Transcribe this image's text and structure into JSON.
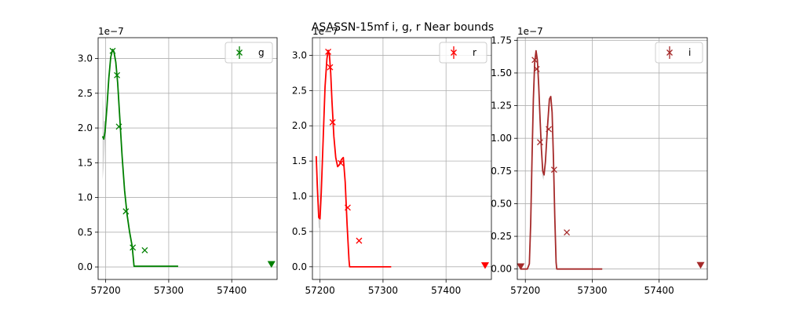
{
  "title": "ASASSN-15mf  i, g, r Near bounds",
  "chart_data": [
    {
      "type": "line",
      "band": "g",
      "color": "#008000",
      "legend": {
        "label": "g",
        "location": "upper right"
      },
      "offset_text": "1e−7",
      "xlim": [
        57188,
        57472
      ],
      "ylim": [
        -0.18,
        3.3
      ],
      "xticks": [
        57200,
        57300,
        57400
      ],
      "yticks": [
        0.0,
        0.5,
        1.0,
        1.5,
        2.0,
        2.5,
        3.0
      ],
      "ytick_labels": [
        "0.0",
        "0.5",
        "1.0",
        "1.5",
        "2.0",
        "2.5",
        "3.0"
      ],
      "grid": true,
      "model": {
        "x": [
          57195,
          57197,
          57199,
          57202,
          57205,
          57208,
          57211,
          57213,
          57216,
          57219,
          57222,
          57226,
          57230,
          57234,
          57238,
          57242,
          57245,
          57247,
          57260,
          57280,
          57300,
          57315
        ],
        "y": [
          1.88,
          1.84,
          1.95,
          2.3,
          2.72,
          3.02,
          3.13,
          3.1,
          2.95,
          2.65,
          2.2,
          1.6,
          1.1,
          0.75,
          0.5,
          0.3,
          0.01,
          0.01,
          0.01,
          0.01,
          0.01,
          0.01
        ]
      },
      "band_fill": {
        "x": [
          57195,
          57197,
          57199,
          57202,
          57205,
          57208
        ],
        "upper": [
          2.5,
          2.1,
          2.1,
          2.4,
          2.8,
          3.05
        ],
        "lower": [
          1.25,
          1.45,
          1.8,
          2.2,
          2.65,
          3.0
        ]
      },
      "points": [
        {
          "x": 57211,
          "y": 3.11
        },
        {
          "x": 57218,
          "y": 2.76
        },
        {
          "x": 57221,
          "y": 2.02
        },
        {
          "x": 57232,
          "y": 0.8
        },
        {
          "x": 57243,
          "y": 0.28
        },
        {
          "x": 57262,
          "y": 0.24
        }
      ],
      "upper_limits": [
        {
          "x": 57463,
          "y": 0.04
        }
      ]
    },
    {
      "type": "line",
      "band": "r",
      "color": "#ff0000",
      "legend": {
        "label": "r",
        "location": "upper right"
      },
      "offset_text": "1e−7",
      "xlim": [
        57188,
        57472
      ],
      "ylim": [
        -0.18,
        3.25
      ],
      "xticks": [
        57200,
        57300,
        57400
      ],
      "yticks": [
        0.0,
        0.5,
        1.0,
        1.5,
        2.0,
        2.5,
        3.0
      ],
      "ytick_labels": [
        "0.0",
        "0.5",
        "1.0",
        "1.5",
        "2.0",
        "2.5",
        "3.0"
      ],
      "grid": true,
      "model": {
        "x": [
          57194,
          57196,
          57198,
          57200,
          57202,
          57205,
          57208,
          57211,
          57213,
          57215,
          57217,
          57219,
          57222,
          57225,
          57228,
          57231,
          57234,
          57237,
          57240,
          57243,
          57246,
          57247,
          57270,
          57290,
          57313
        ],
        "y": [
          1.57,
          1.1,
          0.7,
          0.68,
          1.05,
          1.8,
          2.55,
          2.95,
          3.07,
          3.0,
          2.75,
          2.35,
          1.85,
          1.55,
          1.42,
          1.45,
          1.52,
          1.55,
          1.2,
          0.6,
          0.1,
          0.0,
          0.0,
          0.0,
          0.0
        ]
      },
      "band_fill": {
        "x": [
          57194,
          57196,
          57198,
          57200,
          57202,
          57205
        ],
        "upper": [
          1.5,
          1.2,
          0.9,
          0.85,
          1.15,
          1.85
        ],
        "lower": [
          1.2,
          0.9,
          0.55,
          0.55,
          0.95,
          1.75
        ]
      },
      "points": [
        {
          "x": 57213,
          "y": 3.05
        },
        {
          "x": 57216,
          "y": 2.83
        },
        {
          "x": 57220,
          "y": 2.05
        },
        {
          "x": 57233,
          "y": 1.47
        },
        {
          "x": 57244,
          "y": 0.84
        },
        {
          "x": 57262,
          "y": 0.37
        }
      ],
      "upper_limits": [
        {
          "x": 57462,
          "y": 0.02
        }
      ]
    },
    {
      "type": "line",
      "band": "i",
      "color": "#a52a2a",
      "legend": {
        "label": "i",
        "location": "upper right"
      },
      "offset_text": "1e−7",
      "xlim": [
        57188,
        57472
      ],
      "ylim": [
        -0.08,
        1.77
      ],
      "xticks": [
        57200,
        57300,
        57400
      ],
      "yticks": [
        0.0,
        0.25,
        0.5,
        0.75,
        1.0,
        1.25,
        1.5,
        1.75
      ],
      "ytick_labels": [
        "0.00",
        "0.25",
        "0.50",
        "0.75",
        "1.00",
        "1.25",
        "1.50",
        "1.75"
      ],
      "grid": true,
      "model": {
        "x": [
          57193,
          57198,
          57203,
          57206,
          57208,
          57210,
          57212,
          57214,
          57216,
          57218,
          57220,
          57222,
          57224,
          57226,
          57228,
          57230,
          57233,
          57236,
          57238,
          57240,
          57242,
          57244,
          57246,
          57247,
          57270,
          57290,
          57315
        ],
        "y": [
          0.0,
          0.0,
          0.0,
          0.04,
          0.35,
          0.85,
          1.3,
          1.58,
          1.67,
          1.6,
          1.4,
          1.15,
          0.92,
          0.75,
          0.72,
          0.82,
          1.08,
          1.3,
          1.32,
          1.2,
          0.85,
          0.4,
          0.05,
          0.0,
          0.0,
          0.0,
          0.0
        ]
      },
      "band_fill": {
        "x": [
          57225,
          57227,
          57229,
          57231
        ],
        "upper": [
          0.8,
          0.76,
          0.8,
          0.92
        ],
        "lower": [
          0.72,
          0.68,
          0.74,
          0.84
        ]
      },
      "points": [
        {
          "x": 57214,
          "y": 1.6
        },
        {
          "x": 57217,
          "y": 1.53
        },
        {
          "x": 57222,
          "y": 0.97
        },
        {
          "x": 57235,
          "y": 1.07
        },
        {
          "x": 57243,
          "y": 0.76
        },
        {
          "x": 57262,
          "y": 0.28
        }
      ],
      "upper_limits": [
        {
          "x": 57193,
          "y": 0.02
        },
        {
          "x": 57462,
          "y": 0.03
        }
      ]
    }
  ]
}
